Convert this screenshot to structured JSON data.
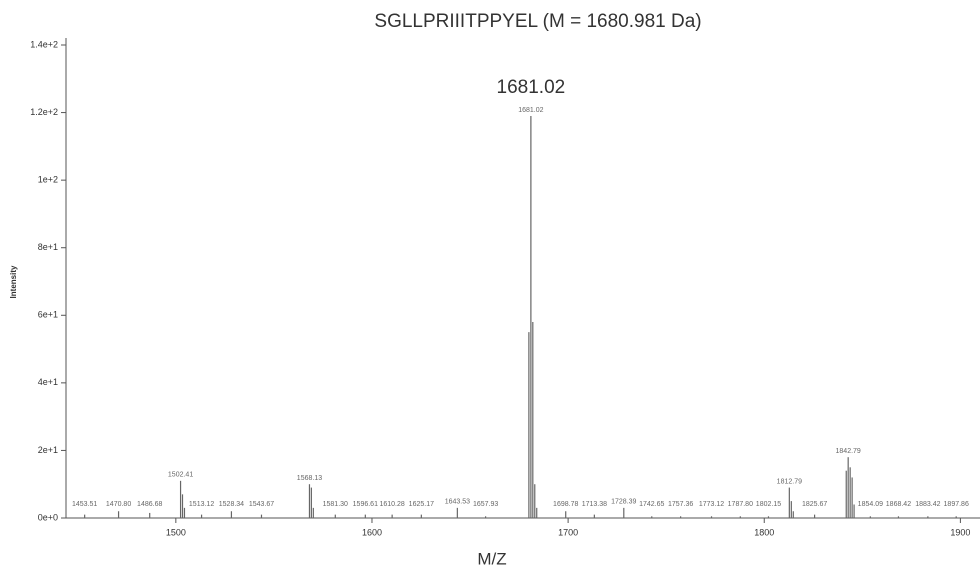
{
  "chart_data": {
    "type": "spectrum",
    "title": "SGLLPRIIITPPYEL (M = 1680.981 Da)",
    "annotation": "1681.02",
    "x_label": "M/Z",
    "y_label": "Intensity",
    "xlim": [
      1444,
      1910
    ],
    "ylim": [
      0,
      140
    ],
    "xticks": [
      1500,
      1600,
      1700,
      1800,
      1900
    ],
    "yticks": [
      {
        "value": 0,
        "label": "0e+0"
      },
      {
        "value": 20,
        "label": "2e+1"
      },
      {
        "value": 40,
        "label": "4e+1"
      },
      {
        "value": 60,
        "label": "6e+1"
      },
      {
        "value": 80,
        "label": "8e+1"
      },
      {
        "value": 100,
        "label": "1e+2"
      },
      {
        "value": 120,
        "label": "1.2e+2"
      },
      {
        "value": 140,
        "label": "1.4e+2"
      }
    ],
    "color": "#666666",
    "peaks": {
      "x": [
        1453.51,
        1470.8,
        1486.68,
        1502.41,
        1513.12,
        1528.34,
        1543.67,
        1568.13,
        1581.3,
        1596.61,
        1610.28,
        1625.17,
        1643.53,
        1657.93,
        1681.02,
        1698.78,
        1713.38,
        1728.39,
        1742.65,
        1757.36,
        1773.12,
        1787.8,
        1802.15,
        1812.79,
        1825.67,
        1842.79,
        1854.09,
        1868.42,
        1883.42,
        1897.86
      ],
      "x_labels": [
        "1453.51",
        "1470.80",
        "1486.68",
        "1502.41",
        "1513.12",
        "1528.34",
        "1543.67",
        "1568.13",
        "1581.30",
        "1596.61",
        "1610.28",
        "1625.17",
        "1643.53",
        "1657.93",
        "1681.02",
        "1698.78",
        "1713.38",
        "1728.39",
        "1742.65",
        "1757.36",
        "1773.12",
        "1787.80",
        "1802.15",
        "1812.79",
        "1825.67",
        "1842.79",
        "1854.09",
        "1868.42",
        "1883.42",
        "1897.86"
      ],
      "values": [
        1,
        2,
        1.5,
        11,
        1,
        2,
        1,
        10,
        1,
        1,
        1,
        1,
        3,
        0.5,
        119,
        2,
        1,
        3,
        0.5,
        0.5,
        0.5,
        0.5,
        0.5,
        9,
        1,
        18,
        0.5,
        0.5,
        0.5,
        0.5
      ]
    },
    "minor_peaks": {
      "x": [
        1503.4,
        1504.4,
        1569.1,
        1570.1,
        1680.0,
        1682.0,
        1683.0,
        1684.0,
        1813.8,
        1814.8,
        1841.8,
        1843.8,
        1844.8,
        1845.8
      ],
      "values": [
        7,
        3,
        9,
        3,
        55,
        58,
        10,
        3,
        5,
        2,
        14,
        15,
        12,
        4
      ]
    }
  }
}
